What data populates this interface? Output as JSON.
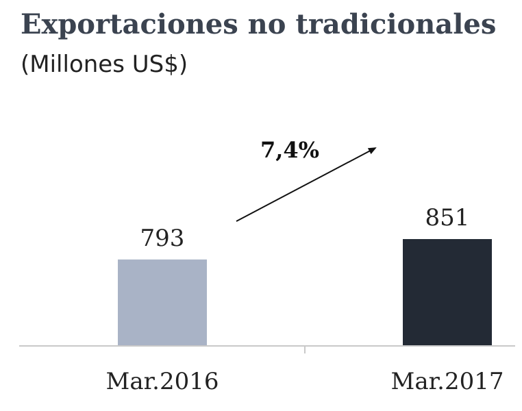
{
  "chart_data": {
    "type": "bar",
    "title": "Exportaciones no tradicionales",
    "subtitle": "(Millones US$)",
    "categories": [
      "Mar.2016",
      "Mar.2017"
    ],
    "values": [
      793,
      851
    ],
    "value_labels": [
      "793",
      "851"
    ],
    "bar_colors": [
      "#a9b3c6",
      "#232a35"
    ],
    "annotation": "7,4%",
    "xlabel": "",
    "ylabel": "",
    "grid": false
  }
}
